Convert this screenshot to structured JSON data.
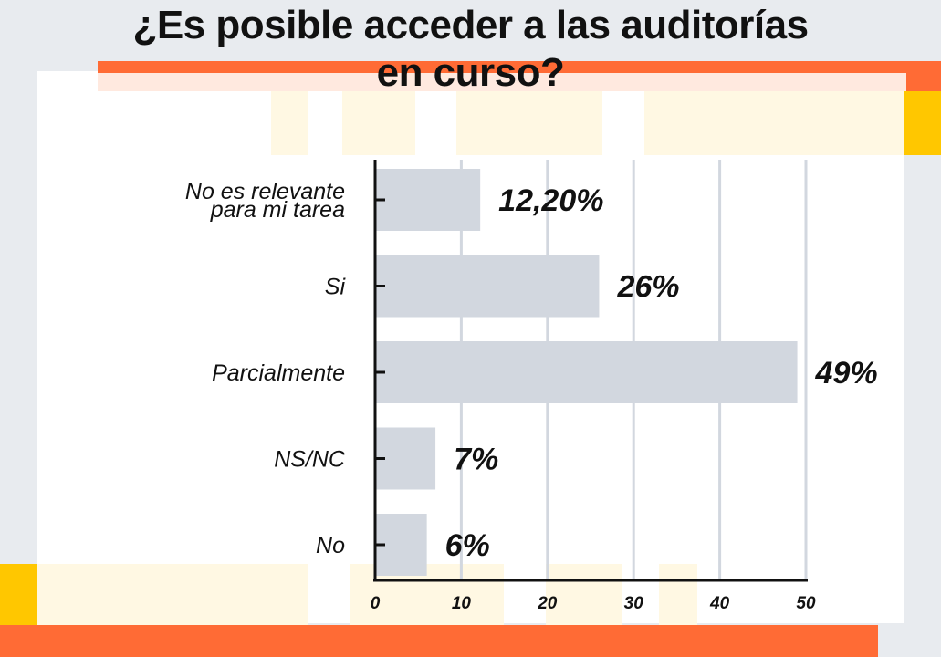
{
  "title": {
    "line1": "¿Es posible acceder a las auditorías",
    "line2": "en curso?"
  },
  "colors": {
    "background": "#e8ebef",
    "panel": "#ffffff",
    "accent_orange": "#ff6b35",
    "accent_yellow": "#ffc700",
    "pale_yellow": "#fff8e3",
    "bar": "#d2d7df",
    "grid": "#d2d7df",
    "axis": "#111111"
  },
  "chart_data": {
    "type": "bar",
    "orientation": "horizontal",
    "categories": [
      [
        "No es relevante",
        "para mi tarea"
      ],
      [
        "Si"
      ],
      [
        "Parcialmente"
      ],
      [
        "NS/NC"
      ],
      [
        "No"
      ]
    ],
    "values": [
      12.2,
      26,
      49,
      7,
      6
    ],
    "value_labels": [
      "12,20%",
      "26%",
      "49%",
      "7%",
      "6%"
    ],
    "xlim": [
      0,
      50
    ],
    "xticks": [
      0,
      10,
      20,
      30,
      40,
      50
    ],
    "grid": true,
    "legend": "none",
    "xlabel": "",
    "ylabel": ""
  }
}
